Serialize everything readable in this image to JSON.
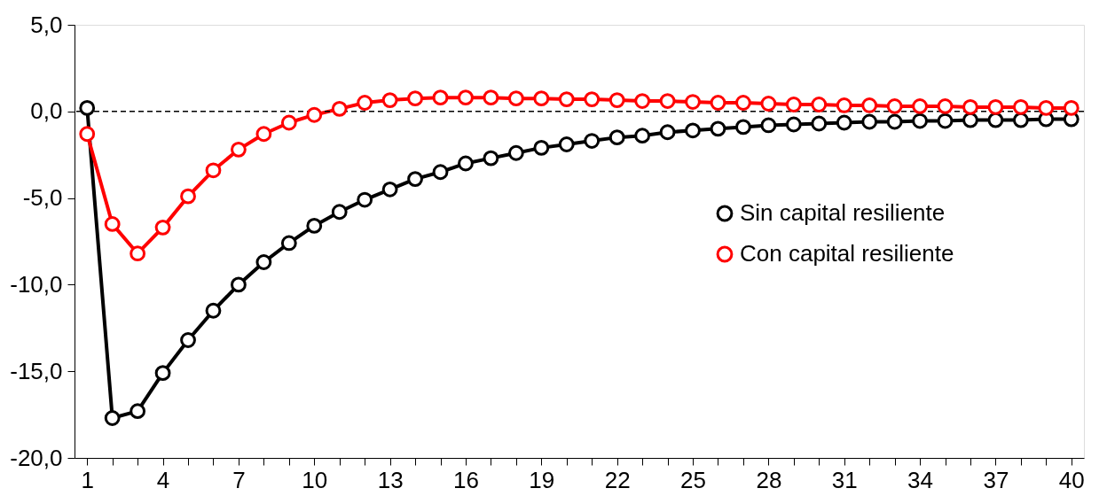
{
  "chart_data": {
    "type": "line",
    "categories": [
      "1",
      null,
      null,
      "4",
      null,
      null,
      "7",
      null,
      null,
      "10",
      null,
      null,
      "13",
      null,
      null,
      "16",
      null,
      null,
      "19",
      null,
      null,
      "22",
      null,
      null,
      "25",
      null,
      null,
      "28",
      null,
      null,
      "31",
      null,
      null,
      "34",
      null,
      null,
      "37",
      null,
      null,
      "40"
    ],
    "series": [
      {
        "name": "Sin capital resiliente",
        "color": "#000000",
        "values": [
          0.2,
          -17.7,
          -17.3,
          -15.1,
          -13.2,
          -11.5,
          -10.0,
          -8.7,
          -7.6,
          -6.6,
          -5.8,
          -5.1,
          -4.5,
          -3.9,
          -3.5,
          -3.0,
          -2.7,
          -2.4,
          -2.1,
          -1.9,
          -1.7,
          -1.5,
          -1.4,
          -1.2,
          -1.1,
          -1.0,
          -0.9,
          -0.8,
          -0.75,
          -0.7,
          -0.65,
          -0.6,
          -0.6,
          -0.55,
          -0.55,
          -0.5,
          -0.5,
          -0.5,
          -0.45,
          -0.45
        ]
      },
      {
        "name": "Con capital resiliente",
        "color": "#ff0000",
        "values": [
          -1.3,
          -6.5,
          -8.2,
          -6.7,
          -4.9,
          -3.4,
          -2.2,
          -1.3,
          -0.65,
          -0.2,
          0.15,
          0.5,
          0.65,
          0.75,
          0.8,
          0.8,
          0.8,
          0.75,
          0.75,
          0.7,
          0.7,
          0.65,
          0.6,
          0.6,
          0.55,
          0.5,
          0.5,
          0.45,
          0.4,
          0.4,
          0.35,
          0.35,
          0.3,
          0.3,
          0.3,
          0.25,
          0.25,
          0.25,
          0.2,
          0.2
        ]
      }
    ],
    "ylim": [
      -20,
      5
    ],
    "yticks": [
      {
        "value": -20,
        "label": "-20,0"
      },
      {
        "value": -15,
        "label": "-15,0"
      },
      {
        "value": -10,
        "label": "-10,0"
      },
      {
        "value": -5,
        "label": "-5,0"
      },
      {
        "value": 0,
        "label": "0,0"
      },
      {
        "value": 5,
        "label": "5,0"
      }
    ],
    "ref_lines": [
      {
        "axis": "y",
        "value": 0,
        "label": null,
        "color": "#000000",
        "line_style": "dashed"
      }
    ],
    "grid": false,
    "legend": "right",
    "marker": "circle",
    "line_style": "solid"
  }
}
